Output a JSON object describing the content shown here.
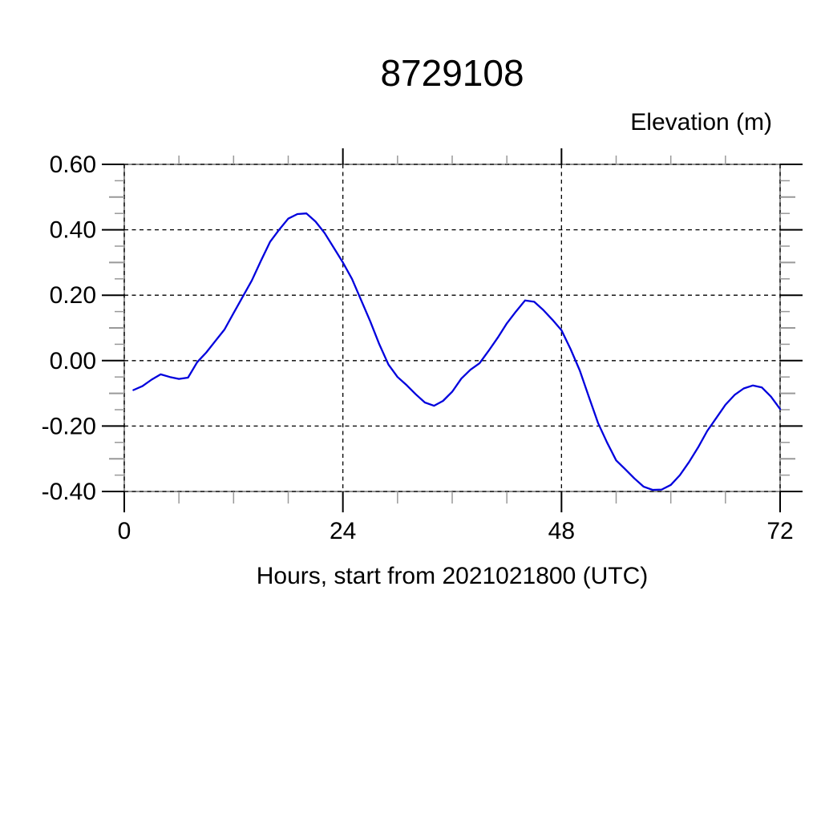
{
  "page": {
    "background": "#ffffff"
  },
  "chart": {
    "title": "8729108",
    "y_axis_title": "Elevation (m)",
    "x_axis_title": "Hours, start from 2021021800 (UTC)"
  },
  "chart_data": {
    "type": "line",
    "title": "8729108",
    "xlabel": "Hours, start from 2021021800 (UTC)",
    "ylabel": "Elevation (m)",
    "xlim": [
      0,
      72
    ],
    "ylim": [
      -0.4,
      0.6
    ],
    "grid": "dashed",
    "legend": "none",
    "xticks": {
      "values": [
        0,
        24,
        48,
        72
      ],
      "labels": [
        "0",
        "24",
        "48",
        "72"
      ],
      "minor_interval": 6
    },
    "yticks": {
      "values": [
        0.6,
        0.4,
        0.2,
        0.0,
        -0.2,
        -0.4
      ],
      "labels": [
        "0.60",
        "0.40",
        "0.20",
        "0.00",
        "-0.20",
        "-0.40"
      ],
      "minor_interval": 0.05
    },
    "line_color": "#0000dd",
    "frame_color": "#777777",
    "grid_color": "#000000",
    "minor_tick_color": "#999999",
    "series": [
      {
        "name": "elevation",
        "x_start_hour": 1,
        "x_step": 1,
        "values": [
          -0.09,
          -0.078,
          -0.058,
          -0.042,
          -0.05,
          -0.056,
          -0.052,
          -0.005,
          0.025,
          0.06,
          0.095,
          0.145,
          0.195,
          0.245,
          0.305,
          0.363,
          0.4,
          0.434,
          0.448,
          0.45,
          0.425,
          0.39,
          0.345,
          0.3,
          0.25,
          0.185,
          0.12,
          0.05,
          -0.012,
          -0.05,
          -0.075,
          -0.103,
          -0.128,
          -0.138,
          -0.123,
          -0.095,
          -0.055,
          -0.028,
          -0.008,
          0.03,
          0.07,
          0.114,
          0.15,
          0.184,
          0.18,
          0.155,
          0.125,
          0.093,
          0.035,
          -0.03,
          -0.11,
          -0.19,
          -0.25,
          -0.305,
          -0.332,
          -0.36,
          -0.385,
          -0.395,
          -0.394,
          -0.38,
          -0.35,
          -0.31,
          -0.265,
          -0.215,
          -0.175,
          -0.135,
          -0.105,
          -0.085,
          -0.076,
          -0.082,
          -0.11,
          -0.148
        ]
      }
    ]
  }
}
